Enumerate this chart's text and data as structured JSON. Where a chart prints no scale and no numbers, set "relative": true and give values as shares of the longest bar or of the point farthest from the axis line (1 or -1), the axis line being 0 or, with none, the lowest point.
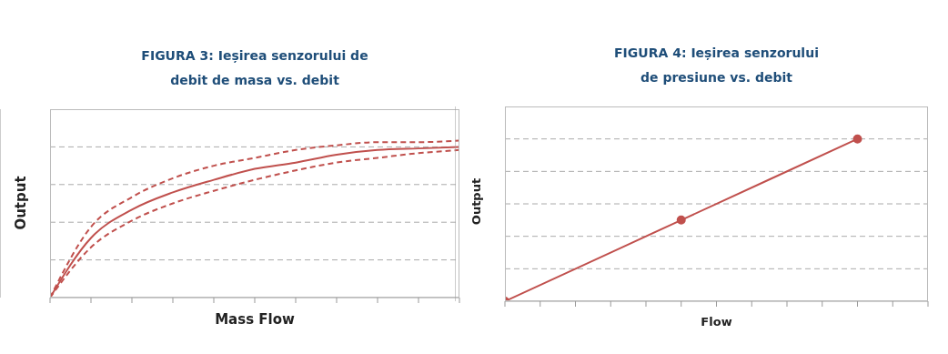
{
  "chart_data": [
    {
      "type": "line",
      "title": "FIGURA 3:  Ieșirea senzorului de debit de masa vs. debit",
      "xlabel": "Mass Flow",
      "ylabel": "Output",
      "relative": true,
      "grid": "y",
      "categories": [
        null,
        null,
        null,
        null,
        null,
        null,
        null,
        null,
        null,
        null,
        null
      ],
      "series": [
        {
          "color": "#c0504d",
          "line_style": "solid",
          "values": [
            0,
            0.38,
            0.56,
            0.67,
            0.75,
            0.82,
            0.86,
            0.91,
            0.94,
            0.95,
            0.96
          ]
        },
        {
          "color": "#c0504d",
          "line_style": "dashed",
          "values": [
            0,
            0.45,
            0.64,
            0.76,
            0.84,
            0.89,
            0.94,
            0.97,
            0.99,
            0.99,
            1
          ]
        },
        {
          "color": "#c0504d",
          "line_style": "dashed",
          "values": [
            0,
            0.32,
            0.49,
            0.6,
            0.68,
            0.75,
            0.81,
            0.86,
            0.89,
            0.92,
            0.94
          ]
        }
      ]
    },
    {
      "type": "line",
      "title": "FIGURA 4:  Ieșirea senzorului de presiune vs. debit",
      "xlabel": "Flow",
      "ylabel": "Output",
      "relative": true,
      "grid": "y",
      "marker": "circle",
      "categories": [
        null,
        null,
        null,
        null,
        null,
        null,
        null,
        null,
        null,
        null,
        null,
        null,
        null
      ],
      "series": [
        {
          "color": "#c0504d",
          "line_style": "solid",
          "values": [
            0,
            null,
            null,
            null,
            null,
            0.5,
            null,
            null,
            null,
            null,
            1,
            null,
            null
          ]
        }
      ]
    }
  ]
}
